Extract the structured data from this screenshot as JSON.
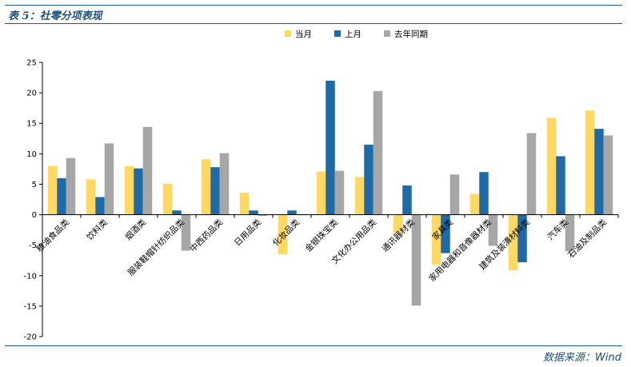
{
  "header": {
    "title": "表 5：社零分项表现"
  },
  "footer": {
    "source": "数据来源：Wind"
  },
  "chart_data": {
    "type": "bar",
    "categories": [
      "粮油食品类",
      "饮料类",
      "烟酒类",
      "服装鞋帽针纺织品类",
      "中西药品类",
      "日用品类",
      "化妆品类",
      "金银珠宝类",
      "文化办公用品类",
      "通讯器材类",
      "家具类",
      "家用电器和音像器材类",
      "建筑及装潢材料类",
      "汽车类",
      "石油及制品类"
    ],
    "series": [
      {
        "name": "当月",
        "color": "#ffd966",
        "values": [
          8.0,
          5.8,
          8.0,
          5.1,
          9.1,
          3.6,
          -6.5,
          7.1,
          6.2,
          -3.0,
          -8.2,
          3.4,
          -9.1,
          15.9,
          17.1
        ]
      },
      {
        "name": "上月",
        "color": "#1f6aa5",
        "values": [
          6.0,
          2.9,
          7.6,
          0.7,
          7.8,
          0.7,
          0.7,
          22.0,
          11.5,
          4.8,
          -6.3,
          7.0,
          -7.8,
          9.6,
          14.1
        ]
      },
      {
        "name": "去年同期",
        "color": "#a6a6a6",
        "values": [
          9.3,
          11.7,
          14.4,
          -5.9,
          10.1,
          -0.2,
          0.0,
          7.2,
          20.3,
          -14.9,
          6.6,
          -5.1,
          13.4,
          -6.0,
          13.0
        ]
      }
    ],
    "ylim": [
      -20,
      25
    ],
    "yticks": [
      -20,
      -15,
      -10,
      -5,
      0,
      5,
      10,
      15,
      20,
      25
    ],
    "legend_position": "top",
    "grid": false
  }
}
